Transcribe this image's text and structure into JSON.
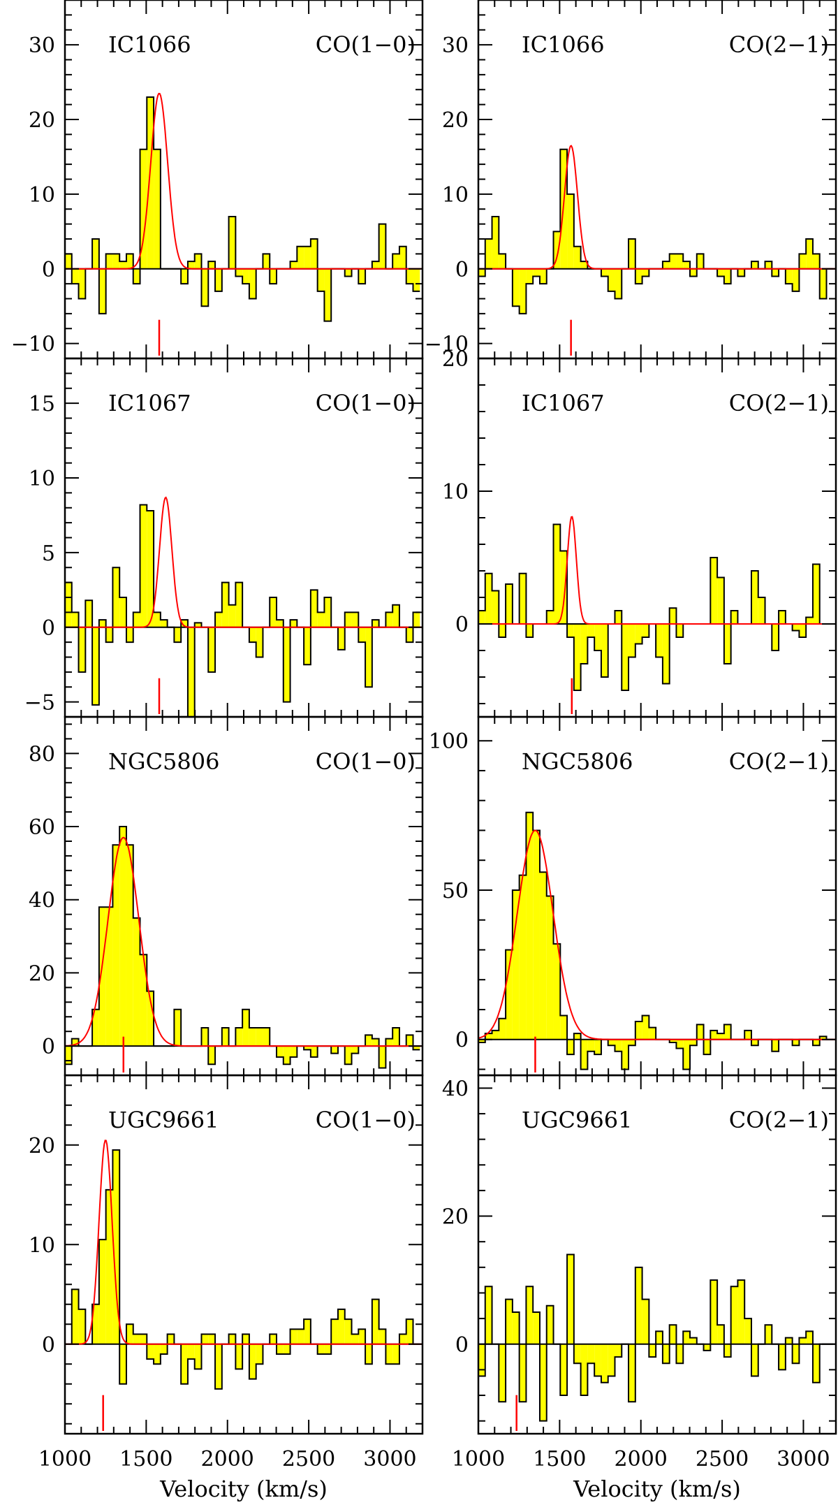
{
  "chart_data": [
    {
      "type": "area",
      "galaxy": "IC1066",
      "line": "CO(1−0)",
      "xlim": [
        1000,
        3200
      ],
      "ylim": [
        -12,
        36
      ],
      "yticks": [
        -10,
        0,
        10,
        20,
        30
      ],
      "xticks": [
        1000,
        1500,
        2000,
        2500,
        3000
      ],
      "x_start": 1000,
      "bin_width": 42,
      "values": [
        2,
        -2,
        -4,
        0,
        4,
        -6,
        2,
        2,
        1,
        2,
        -2,
        16,
        23,
        16,
        0,
        0,
        0,
        -2,
        1,
        2,
        -5,
        1,
        -3,
        0,
        7,
        -1,
        -2,
        -4,
        0,
        2,
        -2,
        0,
        0,
        1,
        3,
        3,
        4,
        -3,
        -7,
        0,
        0,
        -1,
        0,
        -2,
        0,
        1,
        6,
        0,
        2,
        3,
        -2,
        -3
      ],
      "fit": {
        "center": 1580,
        "amplitude": 23.5,
        "sigma": 52
      },
      "marker_velocity": 1580,
      "xlabel": ""
    },
    {
      "type": "area",
      "galaxy": "IC1066",
      "line": "CO(2−1)",
      "xlim": [
        1000,
        3200
      ],
      "ylim": [
        -12,
        36
      ],
      "yticks": [
        -10,
        0,
        10,
        20,
        30
      ],
      "xticks": [
        1000,
        1500,
        2000,
        2500,
        3000
      ],
      "x_start": 1000,
      "bin_width": 42,
      "values": [
        -1,
        4,
        7,
        2,
        0,
        -5,
        -6,
        -2,
        -1,
        -2,
        0,
        5,
        16,
        10,
        3,
        1,
        0,
        0,
        -1,
        -3,
        -4,
        0,
        4,
        -2,
        -1,
        0,
        0,
        1,
        2,
        2,
        1,
        -1,
        2,
        0,
        0,
        -1,
        -2,
        0,
        -1,
        0,
        1,
        0,
        1,
        -1,
        0,
        -2,
        -3,
        2,
        4,
        2,
        -4,
        0
      ],
      "fit": {
        "center": 1570,
        "amplitude": 16.5,
        "sigma": 40
      },
      "marker_velocity": 1570,
      "xlabel": ""
    },
    {
      "type": "area",
      "galaxy": "IC1067",
      "line": "CO(1−0)",
      "xlim": [
        1000,
        3200
      ],
      "ylim": [
        -6,
        18
      ],
      "yticks": [
        -5,
        0,
        5,
        10,
        15
      ],
      "xticks": [
        1000,
        1500,
        2000,
        2500,
        3000
      ],
      "x_start": 1000,
      "bin_width": 42,
      "values": [
        3,
        1,
        -3,
        1.8,
        -5.2,
        0.5,
        -1,
        4,
        2,
        -1,
        1,
        8.2,
        7.8,
        1,
        0.5,
        0,
        -1,
        0.5,
        -6,
        0.3,
        0,
        -3,
        1,
        3,
        1.5,
        3,
        0,
        -1,
        -2,
        0,
        2,
        0.5,
        -5,
        0.5,
        0,
        -2.5,
        2.5,
        1,
        2,
        0,
        -1.5,
        1,
        1,
        -1,
        -4,
        0.5,
        0,
        1,
        1.5,
        0,
        -1,
        1
      ],
      "fit": {
        "center": 1620,
        "amplitude": 8.7,
        "sigma": 38
      },
      "marker_velocity": 1580,
      "xlabel": ""
    },
    {
      "type": "area",
      "galaxy": "IC1067",
      "line": "CO(2−1)",
      "xlim": [
        1000,
        3200
      ],
      "ylim": [
        -7,
        20
      ],
      "yticks": [
        0,
        10,
        20
      ],
      "xticks": [
        1000,
        1500,
        2000,
        2500,
        3000
      ],
      "x_start": 1000,
      "bin_width": 42,
      "values": [
        1,
        3.8,
        2.5,
        -1,
        3,
        0,
        3.8,
        -1,
        0,
        0,
        1,
        7.5,
        5.5,
        -1,
        -5,
        -3,
        -1,
        -2,
        -4,
        0,
        1,
        -5,
        -2.5,
        -1.5,
        -1,
        0,
        -2.5,
        -4.5,
        1.2,
        -1,
        0,
        0,
        0,
        0,
        5,
        3.5,
        -3,
        1,
        0,
        0,
        4,
        2,
        0,
        -2,
        1,
        0,
        -0.5,
        -1,
        0.5,
        4.5,
        0,
        0
      ],
      "fit": {
        "center": 1575,
        "amplitude": 8.1,
        "sigma": 28
      },
      "marker_velocity": 1575,
      "xlabel": ""
    },
    {
      "type": "area",
      "galaxy": "NGC5806",
      "line": "CO(1−0)",
      "xlim": [
        1000,
        3200
      ],
      "ylim": [
        -8,
        90
      ],
      "yticks": [
        0,
        20,
        40,
        60,
        80
      ],
      "xticks": [
        1000,
        1500,
        2000,
        2500,
        3000
      ],
      "x_start": 1000,
      "bin_width": 42,
      "values": [
        -5,
        2,
        0,
        0,
        10,
        38,
        38,
        55,
        60,
        55,
        35,
        25,
        15,
        0,
        0,
        0,
        10,
        0,
        0,
        0,
        5,
        -5,
        0,
        5,
        0,
        5,
        10,
        5,
        5,
        5,
        0,
        -3,
        -5,
        -3,
        0,
        -1,
        -3,
        0,
        0,
        -2,
        0,
        -5,
        -2,
        0,
        3,
        2,
        -6,
        2,
        5,
        0,
        3,
        -1
      ],
      "fit": {
        "center": 1360,
        "amplitude": 57,
        "sigma": 95
      },
      "marker_velocity": 1360,
      "xlabel": ""
    },
    {
      "type": "area",
      "galaxy": "NGC5806",
      "line": "CO(2−1)",
      "xlim": [
        1000,
        3200
      ],
      "ylim": [
        -12,
        108
      ],
      "yticks": [
        0,
        50,
        100
      ],
      "xticks": [
        1000,
        1500,
        2000,
        2500,
        3000
      ],
      "x_start": 1000,
      "bin_width": 42,
      "values": [
        -1,
        2,
        3,
        7,
        30,
        50,
        55,
        76,
        70,
        56,
        48,
        32,
        8,
        -5,
        2,
        -10,
        -4,
        -5,
        0,
        -2,
        -4,
        -10,
        -2,
        6,
        8,
        4,
        0,
        0,
        -1,
        -3,
        -10,
        -2,
        5,
        -5,
        3,
        2,
        5,
        0,
        0,
        3,
        -2,
        0,
        0,
        -4,
        0,
        0,
        -2,
        0,
        0,
        -2,
        1,
        0
      ],
      "fit": {
        "center": 1350,
        "amplitude": 70,
        "sigma": 110
      },
      "marker_velocity": 1350,
      "xlabel": "Velocity (km/s)"
    },
    {
      "type": "area",
      "galaxy": "UGC9661",
      "line": "CO(1−0)",
      "xlim": [
        1000,
        3200
      ],
      "ylim": [
        -9,
        27
      ],
      "yticks": [
        0,
        10,
        20
      ],
      "xticks": [
        1000,
        1500,
        2000,
        2500,
        3000
      ],
      "x_start": 1000,
      "bin_width": 42,
      "values": [
        0,
        5.5,
        3.5,
        0,
        4,
        10.5,
        15.5,
        19.5,
        -4,
        2,
        1,
        1,
        -1.5,
        -2,
        -1,
        1,
        0,
        -4,
        -1.5,
        -2.5,
        1,
        1,
        -4.5,
        0,
        1,
        -2.5,
        1,
        -3.5,
        -2,
        0,
        1,
        -1,
        -1,
        1.5,
        1.5,
        2.5,
        0,
        -1,
        -1,
        2.5,
        3.5,
        2.5,
        1,
        1.5,
        -2,
        4.5,
        1.5,
        -2,
        -2,
        1,
        2.5,
        0
      ],
      "fit": {
        "center": 1250,
        "amplitude": 20.5,
        "sigma": 40
      },
      "marker_velocity": 1235,
      "xlabel": "Velocity (km/s)"
    },
    {
      "type": "area",
      "galaxy": "UGC9661",
      "line": "CO(2−1)",
      "xlim": [
        1000,
        3200
      ],
      "ylim": [
        -14,
        42
      ],
      "yticks": [
        0,
        20,
        40
      ],
      "xticks": [
        1000,
        1500,
        2000,
        2500,
        3000
      ],
      "x_start": 1000,
      "bin_width": 42,
      "values": [
        -5,
        9,
        0,
        -9,
        7,
        5,
        -9,
        9,
        5,
        -12,
        6,
        0,
        -8,
        14,
        -3,
        -8,
        -3,
        -5,
        -6,
        -5,
        -2,
        0,
        -9,
        12,
        7,
        -2,
        2,
        -3,
        3,
        -3,
        2,
        1,
        0,
        -1,
        10,
        3,
        -2,
        9,
        10,
        4,
        -5,
        0,
        3,
        0,
        -4,
        1,
        -3,
        1,
        2,
        -6,
        0,
        0
      ],
      "fit": null,
      "marker_velocity": 1235,
      "xlabel": "Velocity (km/s)"
    }
  ]
}
